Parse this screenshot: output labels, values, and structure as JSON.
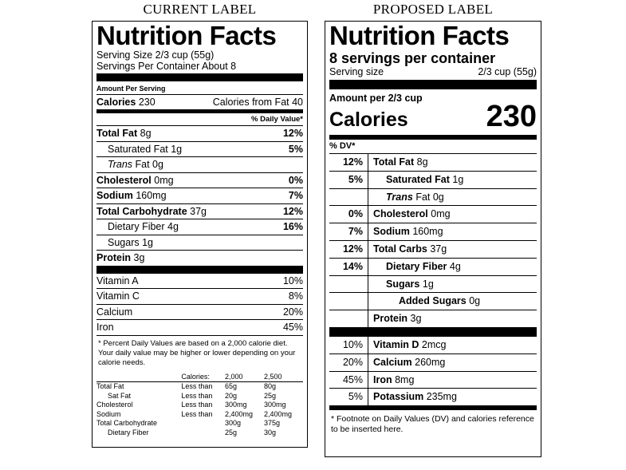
{
  "captions": {
    "current": "CURRENT LABEL",
    "proposed": "PROPOSED LABEL"
  },
  "current": {
    "title": "Nutrition Facts",
    "serving_size": "Serving Size 2/3 cup (55g)",
    "servings_per_container": "Servings Per Container About 8",
    "amount_per_serving": "Amount Per Serving",
    "calories_label": "Calories",
    "calories_value": "230",
    "calories_from_fat": "Calories from Fat 40",
    "daily_value_header": "% Daily Value*",
    "nutrients": [
      {
        "name": "Total Fat",
        "amount": "8g",
        "pct": "12%",
        "bold": true,
        "indent": 0
      },
      {
        "name": "Saturated Fat",
        "amount": "1g",
        "pct": "5%",
        "bold": false,
        "indent": 1
      },
      {
        "name": "Trans",
        "amount": "Fat 0g",
        "pct": "",
        "bold": false,
        "indent": 1,
        "italic": true
      },
      {
        "name": "Cholesterol",
        "amount": "0mg",
        "pct": "0%",
        "bold": true,
        "indent": 0
      },
      {
        "name": "Sodium",
        "amount": "160mg",
        "pct": "7%",
        "bold": true,
        "indent": 0
      },
      {
        "name": "Total Carbohydrate",
        "amount": "37g",
        "pct": "12%",
        "bold": true,
        "indent": 0
      },
      {
        "name": "Dietary Fiber",
        "amount": "4g",
        "pct": "16%",
        "bold": false,
        "indent": 1
      },
      {
        "name": "Sugars",
        "amount": "1g",
        "pct": "",
        "bold": false,
        "indent": 1
      },
      {
        "name": "Protein",
        "amount": "3g",
        "pct": "",
        "bold": true,
        "indent": 0
      }
    ],
    "vitamins": [
      {
        "name": "Vitamin A",
        "pct": "10%"
      },
      {
        "name": "Vitamin C",
        "pct": "8%"
      },
      {
        "name": "Calcium",
        "pct": "20%"
      },
      {
        "name": "Iron",
        "pct": "45%"
      }
    ],
    "footnote": "* Percent Daily Values are based on a 2,000 calorie diet. Your daily value may be higher or lower depending on your calorie needs.",
    "table_header": [
      "",
      "Calories:",
      "2,000",
      "2,500"
    ],
    "table_rows": [
      [
        "Total Fat",
        "Less than",
        "65g",
        "80g"
      ],
      [
        "Sat Fat",
        "Less than",
        "20g",
        "25g"
      ],
      [
        "Cholesterol",
        "Less than",
        "300mg",
        "300mg"
      ],
      [
        "Sodium",
        "Less than",
        "2,400mg",
        "2,400mg"
      ],
      [
        "Total Carbohydrate",
        "",
        "300g",
        "375g"
      ],
      [
        "Dietary Fiber",
        "",
        "25g",
        "30g"
      ]
    ]
  },
  "proposed": {
    "title": "Nutrition Facts",
    "servings": "8 servings per container",
    "serving_size_label": "Serving size",
    "serving_size_value": "2/3 cup (55g)",
    "amount_per": "Amount per 2/3 cup",
    "calories_label": "Calories",
    "calories_value": "230",
    "dv_header": "% DV*",
    "nutrients": [
      {
        "pct": "12%",
        "name": "Total Fat",
        "amount": "8g",
        "bold": true,
        "indent": 0
      },
      {
        "pct": "5%",
        "name": "Saturated Fat",
        "amount": "1g",
        "bold": true,
        "indent": 1
      },
      {
        "pct": "",
        "name": "Trans",
        "amount": "Fat 0g",
        "bold": true,
        "indent": 1,
        "italic": true
      },
      {
        "pct": "0%",
        "name": "Cholesterol",
        "amount": "0mg",
        "bold": true,
        "indent": 0
      },
      {
        "pct": "7%",
        "name": "Sodium",
        "amount": "160mg",
        "bold": true,
        "indent": 0
      },
      {
        "pct": "12%",
        "name": "Total Carbs",
        "amount": "37g",
        "bold": true,
        "indent": 0
      },
      {
        "pct": "14%",
        "name": "Dietary Fiber",
        "amount": "4g",
        "bold": true,
        "indent": 1
      },
      {
        "pct": "",
        "name": "Sugars",
        "amount": "1g",
        "bold": true,
        "indent": 1
      },
      {
        "pct": "",
        "name": "Added Sugars",
        "amount": "0g",
        "bold": true,
        "indent": 2
      },
      {
        "pct": "",
        "name": "Protein",
        "amount": "3g",
        "bold": true,
        "indent": 0
      }
    ],
    "vitamins": [
      {
        "pct": "10%",
        "name": "Vitamin D",
        "amount": "2mcg"
      },
      {
        "pct": "20%",
        "name": "Calcium",
        "amount": "260mg"
      },
      {
        "pct": "45%",
        "name": "Iron",
        "amount": "8mg"
      },
      {
        "pct": "5%",
        "name": "Potassium",
        "amount": "235mg"
      }
    ],
    "footnote": "* Footnote on Daily Values (DV) and calories reference to be inserted here."
  }
}
